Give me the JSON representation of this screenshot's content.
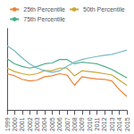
{
  "chart_data": {
    "type": "line",
    "categories": [
      "1999",
      "2000",
      "2001",
      "2002",
      "2003",
      "2004",
      "2005",
      "2006",
      "2007",
      "2008",
      "2009",
      "2010",
      "2011",
      "2012",
      "2013",
      "2014",
      "2015"
    ],
    "series": [
      {
        "name": "25th Percentile",
        "color": "#E8833A",
        "values": [
          1.55,
          1.5,
          1.42,
          1.38,
          1.4,
          1.48,
          1.5,
          1.55,
          1.52,
          1.28,
          1.48,
          1.45,
          1.43,
          1.42,
          1.38,
          1.18,
          1.02
        ]
      },
      {
        "name": "50th Percentile",
        "color": "#C8A838",
        "values": [
          1.68,
          1.6,
          1.55,
          1.52,
          1.55,
          1.62,
          1.62,
          1.68,
          1.68,
          1.5,
          1.62,
          1.6,
          1.58,
          1.55,
          1.52,
          1.4,
          1.28
        ]
      },
      {
        "name": "75th Percentile",
        "color": "#4BAE8A",
        "values": [
          1.9,
          1.78,
          1.72,
          1.68,
          1.72,
          1.78,
          1.8,
          1.88,
          1.88,
          1.78,
          1.82,
          1.8,
          1.78,
          1.72,
          1.65,
          1.55,
          1.45
        ]
      },
      {
        "color": "#7AB8C8",
        "values": [
          2.2,
          2.08,
          1.92,
          1.78,
          1.68,
          1.62,
          1.58,
          1.62,
          1.72,
          1.82,
          1.88,
          1.92,
          1.95,
          1.98,
          2.0,
          2.05,
          2.1
        ]
      }
    ],
    "ylim": [
      0.7,
      2.6
    ],
    "tick_labels": "x",
    "grid": false,
    "legend": "top"
  }
}
